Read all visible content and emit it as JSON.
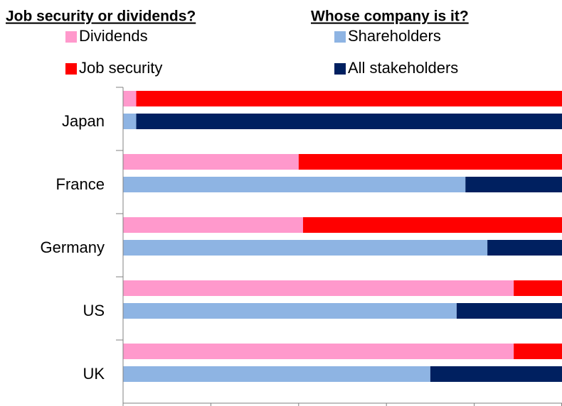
{
  "chart_data": {
    "type": "bar",
    "orientation": "horizontal",
    "stacked": true,
    "categories": [
      "Japan",
      "France",
      "Germany",
      "US",
      "UK"
    ],
    "xlim": [
      0,
      100
    ],
    "xticks": [
      0,
      20,
      40,
      60,
      80,
      100
    ],
    "groups": [
      {
        "title": "Job security or dividends?",
        "series": [
          {
            "name": "Dividends",
            "color": "#ff99cc",
            "values": [
              3,
              40,
              41,
              89,
              89
            ]
          },
          {
            "name": "Job security",
            "color": "#ff0000",
            "values": [
              97,
              60,
              59,
              11,
              11
            ]
          }
        ]
      },
      {
        "title": "Whose company is it?",
        "series": [
          {
            "name": "Shareholders",
            "color": "#8eb4e3",
            "values": [
              3,
              78,
              83,
              76,
              70
            ]
          },
          {
            "name": "All stakeholders",
            "color": "#002060",
            "values": [
              97,
              22,
              17,
              24,
              30
            ]
          }
        ]
      }
    ]
  }
}
